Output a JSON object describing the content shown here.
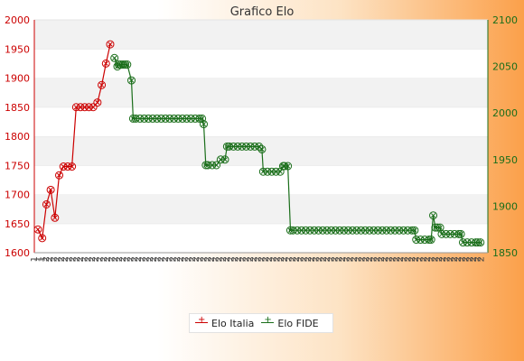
{
  "chart_data": {
    "type": "line",
    "title": "Grafico Elo",
    "y_left": {
      "lim": [
        1600,
        2000
      ],
      "ticks": [
        1600,
        1650,
        1700,
        1750,
        1800,
        1850,
        1900,
        1950,
        2000
      ]
    },
    "y_right": {
      "lim": [
        1850,
        2100
      ],
      "ticks": [
        1850,
        1900,
        1950,
        2000,
        2050,
        2100
      ]
    },
    "grid": "horizontal bands",
    "legend": "bottom-center",
    "x_labels": [
      "1",
      "1",
      "1",
      "2",
      "2",
      "2",
      "2",
      "2",
      "2",
      "2",
      "2",
      "2",
      "2",
      "2",
      "2",
      "2",
      "2",
      "2",
      "2",
      "2",
      "2",
      "2",
      "2",
      "2",
      "2",
      "2",
      "2",
      "2",
      "2",
      "2",
      "2",
      "2",
      "2",
      "2",
      "2",
      "2",
      "2",
      "2",
      "2",
      "2",
      "2",
      "2",
      "2",
      "2",
      "2",
      "2",
      "2",
      "2",
      "2",
      "2",
      "2",
      "2",
      "2",
      "2",
      "2",
      "2",
      "2",
      "2",
      "2",
      "2",
      "2",
      "2",
      "2",
      "2",
      "2",
      "2",
      "2",
      "2",
      "2",
      "2",
      "2",
      "2",
      "2",
      "2",
      "2",
      "2",
      "2",
      "2",
      "2",
      "2",
      "2",
      "2",
      "2",
      "2",
      "2",
      "2",
      "2",
      "2",
      "2",
      "2",
      "2",
      "2",
      "2",
      "2",
      "2",
      "2",
      "2",
      "2",
      "2",
      "2",
      "2",
      "2",
      "2",
      "2",
      "2",
      "2",
      "2",
      "2",
      "2",
      "2",
      "2",
      "2",
      "2",
      "2",
      "2",
      "2",
      "2"
    ],
    "series": [
      {
        "name": "Elo Italia",
        "axis": "left",
        "color": "#cc0000",
        "points": [
          [
            0,
            1640
          ],
          [
            1,
            1625
          ],
          [
            2,
            1683
          ],
          [
            3,
            1708
          ],
          [
            4,
            1660
          ],
          [
            5,
            1733
          ],
          [
            6,
            1748
          ],
          [
            7,
            1748
          ],
          [
            8,
            1748
          ],
          [
            9,
            1850
          ],
          [
            10,
            1850
          ],
          [
            11,
            1850
          ],
          [
            12,
            1850
          ],
          [
            13,
            1850
          ],
          [
            14,
            1858
          ],
          [
            15,
            1888
          ],
          [
            16,
            1925
          ],
          [
            17,
            1958
          ]
        ]
      },
      {
        "name": "Elo FIDE",
        "axis": "right",
        "color": "#1a6e1a",
        "points": [
          [
            18,
            2059
          ],
          [
            18.7,
            2050
          ],
          [
            19,
            2052
          ],
          [
            19.5,
            2052
          ],
          [
            20,
            2052
          ],
          [
            20.5,
            2052
          ],
          [
            21,
            2052
          ],
          [
            22,
            2035
          ],
          [
            22.4,
            1994
          ],
          [
            23,
            1994
          ],
          [
            24,
            1994
          ],
          [
            25,
            1994
          ],
          [
            26,
            1994
          ],
          [
            27,
            1994
          ],
          [
            28,
            1994
          ],
          [
            29,
            1994
          ],
          [
            30,
            1994
          ],
          [
            31,
            1994
          ],
          [
            32,
            1994
          ],
          [
            33,
            1994
          ],
          [
            34,
            1994
          ],
          [
            35,
            1994
          ],
          [
            36,
            1994
          ],
          [
            37,
            1994
          ],
          [
            38,
            1994
          ],
          [
            38.6,
            1994
          ],
          [
            39,
            1988
          ],
          [
            39.5,
            1944
          ],
          [
            40,
            1944
          ],
          [
            41,
            1944
          ],
          [
            42,
            1944
          ],
          [
            43,
            1950
          ],
          [
            44,
            1950
          ],
          [
            44.5,
            1964
          ],
          [
            45,
            1964
          ],
          [
            46,
            1964
          ],
          [
            47,
            1964
          ],
          [
            48,
            1964
          ],
          [
            49,
            1964
          ],
          [
            50,
            1964
          ],
          [
            51,
            1964
          ],
          [
            52,
            1964
          ],
          [
            52.7,
            1961
          ],
          [
            53,
            1937
          ],
          [
            54,
            1937
          ],
          [
            55,
            1937
          ],
          [
            56,
            1937
          ],
          [
            57,
            1937
          ],
          [
            57.7,
            1943
          ],
          [
            58,
            1943
          ],
          [
            58.8,
            1943
          ],
          [
            59.4,
            1874
          ],
          [
            60,
            1874
          ],
          [
            61,
            1874
          ],
          [
            62,
            1874
          ],
          [
            63,
            1874
          ],
          [
            64,
            1874
          ],
          [
            65,
            1874
          ],
          [
            66,
            1874
          ],
          [
            67,
            1874
          ],
          [
            68,
            1874
          ],
          [
            69,
            1874
          ],
          [
            70,
            1874
          ],
          [
            71,
            1874
          ],
          [
            72,
            1874
          ],
          [
            73,
            1874
          ],
          [
            74,
            1874
          ],
          [
            75,
            1874
          ],
          [
            76,
            1874
          ],
          [
            77,
            1874
          ],
          [
            78,
            1874
          ],
          [
            79,
            1874
          ],
          [
            80,
            1874
          ],
          [
            81,
            1874
          ],
          [
            82,
            1874
          ],
          [
            83,
            1874
          ],
          [
            84,
            1874
          ],
          [
            85,
            1874
          ],
          [
            86,
            1874
          ],
          [
            87,
            1874
          ],
          [
            88,
            1874
          ],
          [
            88.6,
            1874
          ],
          [
            89,
            1864
          ],
          [
            90,
            1864
          ],
          [
            91,
            1864
          ],
          [
            92,
            1864
          ],
          [
            92.5,
            1864
          ],
          [
            93,
            1890
          ],
          [
            93.5,
            1877
          ],
          [
            94,
            1877
          ],
          [
            94.6,
            1877
          ],
          [
            95,
            1870
          ],
          [
            96,
            1870
          ],
          [
            97,
            1870
          ],
          [
            98,
            1870
          ],
          [
            99,
            1870
          ],
          [
            99.5,
            1870
          ],
          [
            100,
            1861
          ],
          [
            101,
            1861
          ],
          [
            102,
            1861
          ],
          [
            103,
            1861
          ],
          [
            103.5,
            1861
          ],
          [
            104.1,
            1861
          ]
        ]
      }
    ]
  }
}
